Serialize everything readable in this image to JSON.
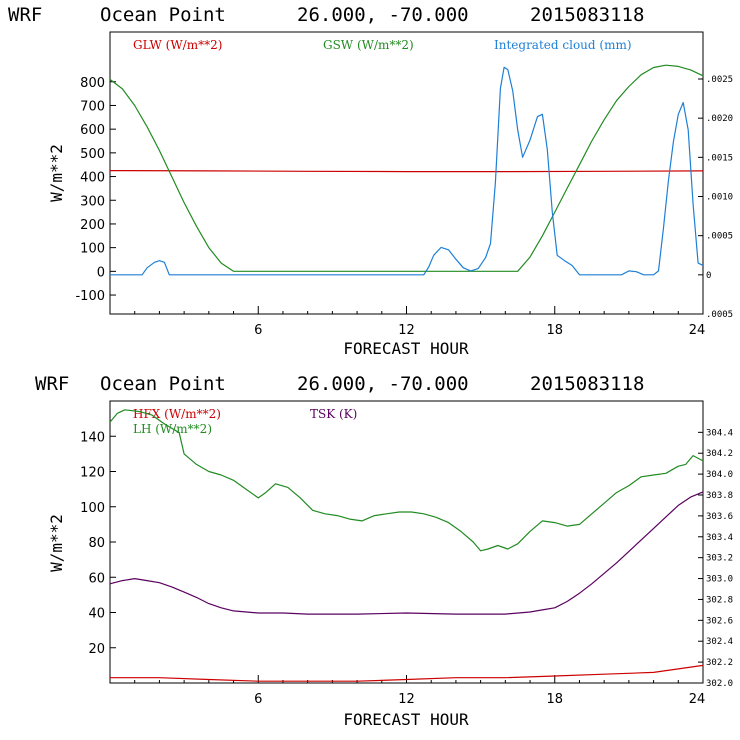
{
  "chart_data": [
    {
      "type": "line",
      "header": {
        "model": "WRF",
        "location": "Ocean Point",
        "coords": "26.000, -70.000",
        "date": "2015083118"
      },
      "xlabel": "FORECAST HOUR",
      "ylabel": "W/m**2",
      "xlim": [
        0,
        24
      ],
      "ylim": [
        -180,
        1010
      ],
      "y2lim": [
        -0.0005,
        0.0031
      ],
      "xticks": [
        6,
        12,
        18,
        24
      ],
      "xtick_labels": [
        "6",
        "12",
        "18",
        "24"
      ],
      "yticks": [
        -100,
        0,
        100,
        200,
        300,
        400,
        500,
        600,
        700,
        800
      ],
      "ytick_labels": [
        "-100",
        "0",
        "100",
        "200",
        "300",
        "400",
        "500",
        "600",
        "700",
        "800"
      ],
      "y2ticks": [
        -0.0005,
        0,
        0.0005,
        0.001,
        0.0015,
        0.002,
        0.0025
      ],
      "y2tick_labels": [
        ".0005",
        "0",
        ".0005",
        ".0010",
        ".0015",
        ".0020",
        ".0025"
      ],
      "series": [
        {
          "name": "GLW (W/m**2)",
          "color": "#cc0000",
          "axis": "left",
          "x": [
            0,
            4,
            8,
            12,
            16,
            20,
            24
          ],
          "values": [
            425,
            424,
            422,
            421,
            421,
            422,
            424
          ]
        },
        {
          "name": "GSW (W/m**2)",
          "color": "#228b22",
          "axis": "left",
          "x": [
            0,
            0.5,
            1,
            1.5,
            2,
            2.5,
            3,
            3.5,
            4,
            4.5,
            5,
            6,
            8,
            10,
            12,
            14,
            16,
            16.5,
            17,
            17.5,
            18,
            18.5,
            19,
            19.5,
            20,
            20.5,
            21,
            21.5,
            22,
            22.5,
            23,
            23.5,
            24
          ],
          "values": [
            810,
            770,
            700,
            610,
            510,
            400,
            290,
            190,
            100,
            35,
            0,
            0,
            0,
            0,
            0,
            0,
            0,
            0,
            60,
            150,
            250,
            350,
            450,
            550,
            640,
            720,
            780,
            830,
            860,
            870,
            865,
            850,
            825
          ]
        },
        {
          "name": "Integrated cloud (mm)",
          "color": "#1e7fd6",
          "axis": "right",
          "x": [
            0,
            1.3,
            1.5,
            1.8,
            2.0,
            2.2,
            2.4,
            2.6,
            5,
            8,
            11,
            12.7,
            12.9,
            13.1,
            13.4,
            13.7,
            14.0,
            14.3,
            14.6,
            14.9,
            15.2,
            15.4,
            15.6,
            15.8,
            15.95,
            16.1,
            16.3,
            16.5,
            16.7,
            17.0,
            17.3,
            17.5,
            17.7,
            17.9,
            18.1,
            18.4,
            18.7,
            19.0,
            19.3,
            20,
            20.7,
            21.0,
            21.3,
            21.6,
            22.0,
            22.2,
            22.4,
            22.6,
            22.8,
            23.0,
            23.2,
            23.4,
            23.6,
            23.8,
            24
          ],
          "values": [
            0,
            0,
            9e-05,
            0.00016,
            0.00018,
            0.00016,
            0.0,
            0.0,
            0,
            0,
            0,
            0,
            0.0001,
            0.00025,
            0.00035,
            0.00032,
            0.0002,
            9e-05,
            5e-05,
            8e-05,
            0.00022,
            0.0004,
            0.00118,
            0.00238,
            0.00265,
            0.00262,
            0.00235,
            0.00185,
            0.0015,
            0.00172,
            0.00202,
            0.00205,
            0.0016,
            0.0008,
            0.00025,
            0.00018,
            0.00012,
            0.0,
            0.0,
            0,
            0,
            5e-05,
            4e-05,
            0,
            0,
            5e-05,
            0.0006,
            0.0012,
            0.0017,
            0.00205,
            0.0022,
            0.00185,
            0.0009,
            0.00015,
            0.00012
          ]
        }
      ]
    },
    {
      "type": "line",
      "header": {
        "model": "WRF",
        "location": "Ocean Point",
        "coords": "26.000, -70.000",
        "date": "2015083118"
      },
      "xlabel": "FORECAST HOUR",
      "ylabel": "W/m**2",
      "xlim": [
        0,
        24
      ],
      "ylim": [
        0,
        160
      ],
      "y2lim": [
        302.0,
        304.7
      ],
      "xticks": [
        6,
        12,
        18,
        24
      ],
      "xtick_labels": [
        "6",
        "12",
        "18",
        "24"
      ],
      "yticks": [
        20,
        40,
        60,
        80,
        100,
        120,
        140
      ],
      "ytick_labels": [
        "20",
        "40",
        "60",
        "80",
        "100",
        "120",
        "140"
      ],
      "y2ticks": [
        302.0,
        302.2,
        302.4,
        302.6,
        302.8,
        303.0,
        303.2,
        303.4,
        303.6,
        303.8,
        304.0,
        304.2,
        304.4
      ],
      "y2tick_labels": [
        "302.0",
        "302.2",
        "302.4",
        "302.6",
        "302.8",
        "303.0",
        "303.2",
        "303.4",
        "303.6",
        "303.8",
        "304.0",
        "304.2",
        "304.4"
      ],
      "series": [
        {
          "name": "HFX (W/m**2)",
          "color": "#cc0000",
          "axis": "left",
          "x": [
            0,
            2,
            4,
            6,
            8,
            10,
            12,
            14,
            16,
            18,
            20,
            22,
            23,
            24
          ],
          "values": [
            3,
            3,
            2,
            1,
            1,
            1,
            2,
            3,
            3,
            4,
            5,
            6,
            8,
            10
          ]
        },
        {
          "name": "LH  (W/m**2)",
          "color": "#228b22",
          "axis": "left",
          "x": [
            0,
            0.3,
            0.6,
            1.2,
            1.7,
            2.2,
            2.8,
            3.0,
            3.5,
            4.0,
            4.5,
            5.0,
            5.5,
            6.0,
            6.3,
            6.7,
            7.2,
            7.7,
            8.2,
            8.7,
            9.2,
            9.7,
            10.2,
            10.7,
            11.2,
            11.7,
            12.2,
            12.7,
            13.2,
            13.7,
            14.2,
            14.7,
            15.0,
            15.3,
            15.7,
            16.1,
            16.5,
            17.0,
            17.5,
            18.0,
            18.5,
            19.0,
            19.5,
            20.0,
            20.5,
            21.0,
            21.5,
            22.0,
            22.5,
            23.0,
            23.3,
            23.6,
            24
          ],
          "values": [
            148,
            153,
            155,
            154,
            152,
            147,
            142,
            130,
            124,
            120,
            118,
            115,
            110,
            105,
            108,
            113,
            111,
            105,
            98,
            96,
            95,
            93,
            92,
            95,
            96,
            97,
            97,
            96,
            94,
            91,
            86,
            80,
            75,
            76,
            78,
            76,
            79,
            86,
            92,
            91,
            89,
            90,
            96,
            102,
            108,
            112,
            117,
            118,
            119,
            123,
            124,
            129,
            126
          ]
        },
        {
          "name": "TSK (K)",
          "color": "#5a0060",
          "axis": "right",
          "x": [
            0,
            0.5,
            1,
            1.5,
            2,
            2.5,
            3,
            3.5,
            4,
            4.5,
            5,
            6,
            7,
            8,
            10,
            12,
            14,
            16,
            17,
            17.5,
            18,
            18.5,
            19,
            19.5,
            20,
            20.5,
            21,
            21.5,
            22,
            22.5,
            23,
            23.5,
            24
          ],
          "values": [
            302.95,
            302.98,
            303.0,
            302.98,
            302.96,
            302.92,
            302.87,
            302.82,
            302.76,
            302.72,
            302.69,
            302.67,
            302.67,
            302.66,
            302.66,
            302.67,
            302.66,
            302.66,
            302.68,
            302.7,
            302.72,
            302.78,
            302.86,
            302.95,
            303.05,
            303.15,
            303.26,
            303.37,
            303.48,
            303.59,
            303.7,
            303.78,
            303.83
          ]
        }
      ]
    }
  ]
}
